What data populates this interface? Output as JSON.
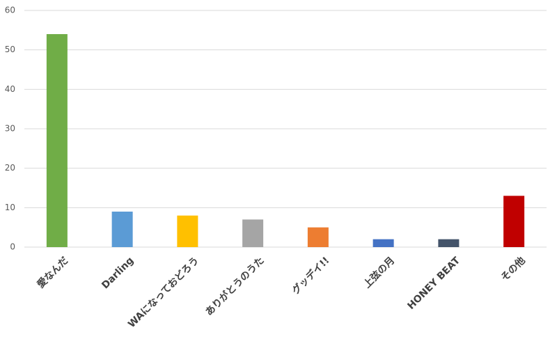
{
  "chart_data": {
    "type": "bar",
    "categories": [
      "愛なんだ",
      "Darling",
      "WAになっておどろう",
      "ありがとうのうた",
      "グッデイ!!",
      "上弦の月",
      "HONEY BEAT",
      "その他"
    ],
    "values": [
      54,
      9,
      8,
      7,
      5,
      2,
      2,
      13
    ],
    "colors": [
      "#70ad47",
      "#5b9bd5",
      "#ffc000",
      "#a5a5a5",
      "#ed7d31",
      "#4472c4",
      "#44546a",
      "#c00000"
    ],
    "ylim": [
      0,
      60
    ],
    "yticks": [
      0,
      10,
      20,
      30,
      40,
      50,
      60
    ],
    "grid": true
  }
}
